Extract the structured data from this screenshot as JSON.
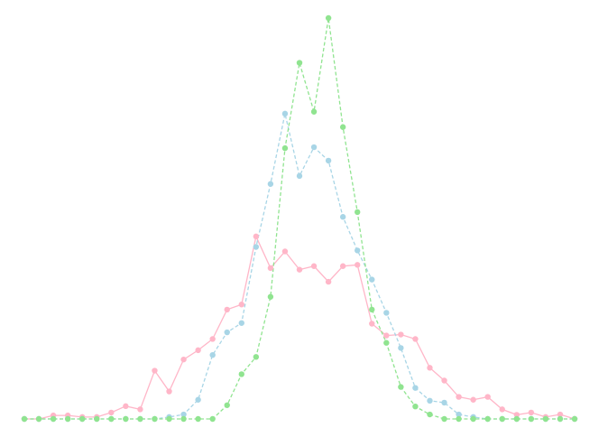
{
  "chart_data": {
    "type": "line",
    "title": "",
    "xlabel": "",
    "ylabel": "",
    "x": [
      0,
      1,
      2,
      3,
      4,
      5,
      6,
      7,
      8,
      9,
      10,
      11,
      12,
      13,
      14,
      15,
      16,
      17,
      18,
      19,
      20,
      21,
      22,
      23,
      24,
      25,
      26,
      27,
      28,
      29,
      30,
      31,
      32,
      33,
      34,
      35,
      36,
      37,
      38
    ],
    "ylim": [
      0,
      100
    ],
    "grid": false,
    "legend": "none",
    "series": [
      {
        "color": "#ffb6c8",
        "line_style": "solid",
        "values": [
          0,
          0,
          1.1,
          1.1,
          0.6,
          0.6,
          2.0,
          4.0,
          3.0,
          15.1,
          8.6,
          18.6,
          21.5,
          25.0,
          34.2,
          35.8,
          57.1,
          47.2,
          52.4,
          46.7,
          47.8,
          42.9,
          47.8,
          48.2,
          29.8,
          26.1,
          26.4,
          25.0,
          16.0,
          12.0,
          6.9,
          6.0,
          6.9,
          3.0,
          1.3,
          2.0,
          0.6,
          1.4,
          0
        ]
      },
      {
        "color": "#a8d5e6",
        "line_style": "dashed",
        "values": [
          0,
          0,
          0,
          0,
          0,
          0,
          0,
          0,
          0,
          0,
          0.6,
          1.4,
          6.0,
          20.0,
          27.1,
          30.0,
          53.8,
          73.5,
          95.5,
          76.0,
          85.0,
          80.8,
          63.2,
          52.7,
          43.6,
          33.2,
          22.2,
          9.7,
          5.7,
          5.1,
          1.4,
          0.6,
          0,
          0,
          0,
          0,
          0,
          0,
          0
        ]
      },
      {
        "color": "#90e490",
        "line_style": "dashed",
        "values": [
          0,
          0,
          0,
          0,
          0,
          0,
          0,
          0,
          0,
          0,
          0,
          0,
          0,
          0,
          4.3,
          14.0,
          19.4,
          38.2,
          84.7,
          111.4,
          96.1,
          125.4,
          91.3,
          64.7,
          34.2,
          23.8,
          10.0,
          3.9,
          1.4,
          0,
          0,
          0,
          0,
          0,
          0,
          0,
          0,
          0,
          0
        ]
      }
    ]
  }
}
